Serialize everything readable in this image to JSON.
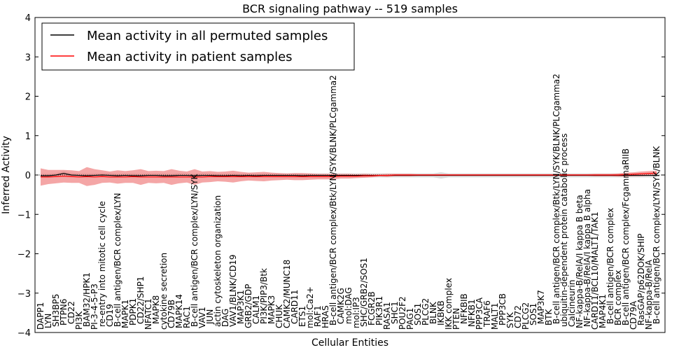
{
  "chart_data": {
    "type": "line",
    "title": "BCR signaling pathway -- 519 samples",
    "xlabel": "Cellular Entities",
    "ylabel": "Inferred Activity",
    "ylim": [
      -4,
      4
    ],
    "yticks": [
      -4,
      -3,
      -2,
      -1,
      0,
      1,
      2,
      3,
      4
    ],
    "ytick_labels": [
      "−4",
      "−3",
      "−2",
      "−1",
      "0",
      "1",
      "2",
      "3",
      "4"
    ],
    "legend": {
      "placement": "top-left"
    },
    "categories": [
      "DAPP1",
      "LYN",
      "SH3BP5",
      "PTPN6",
      "CD22",
      "PI3K",
      "BAM32/HPK1",
      "PI-3-4-5-P3",
      "re-entry into mitotic cell cycle",
      "CD19",
      "B-cell antigen/BCR complex/LYN",
      "MAPK1",
      "PDPK1",
      "CD22/SHP1",
      "NFATC1",
      "MAPK8",
      "cytokine secretion",
      "CD79B",
      "MAPK14",
      "RAC1",
      "B-cell antigen/BCR complex/LYN/SYK",
      "VAV1",
      "JUN",
      "actin cytoskeleton organization",
      "DAG",
      "VAV1/BLNK/CD19",
      "MAP3K1",
      "GRB2/GDP",
      "CALM1",
      "PI3K/PIP3/Btk",
      "MAPK3",
      "CHUK",
      "CAMK2/MUNC18",
      "CARD11",
      "ETS1",
      "mol:Ca2+",
      "RAF1",
      "HRAS",
      "B-cell antigen/BCR complex/Btk/LYN/SYK/BLNK/PLCgamma2",
      "CAMK2G",
      "mol:DAG",
      "mol:IP3",
      "SHC/GRB2/SOS1",
      "FCGR2B",
      "PIK3R1",
      "RASA1",
      "SHC1",
      "POU2F2",
      "PAG1",
      "SOS1",
      "PLCG2",
      "BLNK",
      "IKBKB",
      "IKK complex",
      "PTEN",
      "NFKBIB",
      "NFKB1",
      "PPP3CA",
      "TRAF6",
      "MALT1",
      "PPP3CB",
      "SYK",
      "CD72",
      "PLCG2",
      "SOS1",
      "MAP3K7",
      "BTK",
      "B-cell antigen/BCR complex/Btk/LYN/SYK/BLNK/PLCgamma2",
      "ubiquitin-dependent protein catabolic process",
      "Calcineurin",
      "NF-kappa-B/RelA/I kappa B beta",
      "NF-kappa-B/RelA/I kappa B alpha",
      "CARD11/BCL10/MALT1/TAK1",
      "MAP4K1",
      "B-cell antigen/BCR complex",
      "BCR complex",
      "B-cell antigen/BCR complex/FcgammaRIIB",
      "CD79A",
      "RasGAP/p62DOK/SHIP",
      "NF-kappa-B/RelA",
      "B-cell antigen/BCR complex/LYN/SYK/BLNK"
    ],
    "label_rows": [
      0,
      1,
      2,
      3,
      4,
      0,
      2,
      0,
      2,
      2,
      2,
      1,
      3,
      4,
      0,
      4,
      0,
      1,
      1,
      1,
      2,
      1,
      4,
      2,
      2,
      2,
      4,
      1,
      4,
      4,
      4,
      1,
      1,
      4,
      2,
      1,
      2,
      1,
      3,
      4,
      4,
      1,
      2,
      3,
      3,
      0,
      4,
      0,
      0,
      3,
      3,
      4,
      3,
      0,
      0,
      4,
      2,
      0,
      2,
      0,
      3,
      1,
      1,
      0,
      3,
      4,
      3,
      4,
      2,
      2,
      1,
      2,
      0,
      1,
      4,
      3,
      3,
      0,
      3,
      0,
      4
    ],
    "series": [
      {
        "name": "Mean activity in all permuted samples",
        "color": "#000000",
        "values": [
          -0.02,
          -0.02,
          0.0,
          0.04,
          0.0,
          -0.01,
          -0.02,
          -0.01,
          0.0,
          -0.01,
          -0.02,
          -0.01,
          -0.02,
          -0.02,
          -0.01,
          -0.01,
          -0.02,
          -0.02,
          -0.01,
          -0.01,
          -0.02,
          -0.01,
          -0.01,
          -0.02,
          -0.02,
          -0.01,
          -0.02,
          -0.01,
          -0.02,
          -0.01,
          -0.01,
          -0.01,
          -0.01,
          -0.01,
          -0.02,
          -0.01,
          -0.01,
          -0.01,
          -0.01,
          -0.01,
          -0.01,
          -0.01,
          -0.01,
          -0.01,
          -0.01,
          -0.01,
          -0.01,
          -0.01,
          -0.01,
          -0.01,
          -0.01,
          -0.01,
          -0.01,
          -0.01,
          -0.01,
          -0.01,
          -0.01,
          -0.01,
          -0.01,
          -0.01,
          -0.01,
          -0.01,
          -0.01,
          -0.01,
          -0.01,
          -0.01,
          -0.01,
          -0.01,
          -0.01,
          -0.01,
          -0.01,
          -0.01,
          -0.01,
          -0.01,
          -0.01,
          -0.01,
          -0.01,
          -0.01,
          -0.01,
          -0.01,
          -0.01
        ],
        "band": [
          0.05,
          0.05,
          0.05,
          0.06,
          0.05,
          0.05,
          0.06,
          0.05,
          0.05,
          0.06,
          0.05,
          0.05,
          0.06,
          0.05,
          0.05,
          0.05,
          0.06,
          0.05,
          0.06,
          0.05,
          0.05,
          0.06,
          0.05,
          0.05,
          0.05,
          0.05,
          0.05,
          0.05,
          0.05,
          0.05,
          0.05,
          0.05,
          0.05,
          0.05,
          0.05,
          0.05,
          0.05,
          0.05,
          0.05,
          0.05,
          0.05,
          0.05,
          0.05,
          0.05,
          0.05,
          0.05,
          0.05,
          0.05,
          0.05,
          0.05,
          0.05,
          0.05,
          0.08,
          0.05,
          0.05,
          0.05,
          0.05,
          0.05,
          0.05,
          0.05,
          0.05,
          0.05,
          0.05,
          0.05,
          0.05,
          0.05,
          0.05,
          0.05,
          0.05,
          0.05,
          0.05,
          0.05,
          0.05,
          0.05,
          0.05,
          0.05,
          0.05,
          0.05,
          0.05,
          0.05,
          0.05
        ]
      },
      {
        "name": "Mean activity in patient samples",
        "color": "#ff0000",
        "values": [
          -0.05,
          -0.05,
          -0.04,
          -0.03,
          -0.04,
          -0.05,
          -0.04,
          -0.05,
          -0.04,
          -0.05,
          -0.05,
          -0.05,
          -0.04,
          -0.05,
          -0.05,
          -0.05,
          -0.05,
          -0.05,
          -0.05,
          -0.05,
          -0.05,
          -0.05,
          -0.04,
          -0.04,
          -0.04,
          -0.04,
          -0.04,
          -0.04,
          -0.04,
          -0.04,
          -0.04,
          -0.04,
          -0.04,
          -0.04,
          -0.04,
          -0.04,
          -0.04,
          -0.04,
          -0.04,
          -0.03,
          -0.03,
          -0.03,
          -0.02,
          -0.02,
          -0.01,
          -0.01,
          0.0,
          0.0,
          0.0,
          0.0,
          0.0,
          0.0,
          0.0,
          0.0,
          0.0,
          0.0,
          0.0,
          0.0,
          0.0,
          0.0,
          0.0,
          0.0,
          0.0,
          0.0,
          0.0,
          0.0,
          0.0,
          0.0,
          0.0,
          0.0,
          0.0,
          0.0,
          0.0,
          0.0,
          0.0,
          0.0,
          0.01,
          0.02,
          0.03,
          0.04,
          0.05
        ],
        "band": [
          0.22,
          0.18,
          0.17,
          0.16,
          0.16,
          0.15,
          0.24,
          0.2,
          0.16,
          0.14,
          0.17,
          0.15,
          0.16,
          0.2,
          0.15,
          0.16,
          0.15,
          0.2,
          0.16,
          0.14,
          0.2,
          0.14,
          0.14,
          0.12,
          0.13,
          0.15,
          0.12,
          0.1,
          0.11,
          0.12,
          0.1,
          0.09,
          0.08,
          0.09,
          0.09,
          0.08,
          0.07,
          0.07,
          0.07,
          0.06,
          0.06,
          0.05,
          0.05,
          0.04,
          0.03,
          0.04,
          0.03,
          0.03,
          0.03,
          0.02,
          0.02,
          0.02,
          0.02,
          0.02,
          0.02,
          0.02,
          0.02,
          0.02,
          0.02,
          0.02,
          0.02,
          0.02,
          0.02,
          0.02,
          0.02,
          0.02,
          0.02,
          0.02,
          0.02,
          0.02,
          0.02,
          0.02,
          0.03,
          0.03,
          0.03,
          0.04,
          0.05,
          0.05,
          0.06,
          0.06,
          0.06
        ]
      }
    ]
  }
}
